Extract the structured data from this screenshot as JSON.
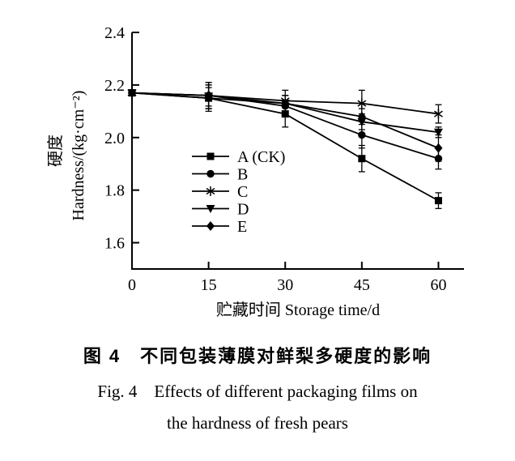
{
  "chart_data": {
    "type": "line",
    "title": "",
    "x": [
      0,
      15,
      30,
      45,
      60
    ],
    "xticks": [
      0,
      15,
      30,
      45,
      60
    ],
    "yticks": [
      1.6,
      1.8,
      2.0,
      2.2,
      2.4
    ],
    "xlim": [
      0,
      65
    ],
    "ylim": [
      1.5,
      2.4
    ],
    "xlabel": "贮藏时间 Storage time/d",
    "ylabel_zh": "硬度",
    "ylabel_en": "Hardness/(kg·cm⁻²)",
    "grid": false,
    "legend_position": "inside-lower-left",
    "line_color": "#000000",
    "series": [
      {
        "name": "A (CK)",
        "marker": "square",
        "values": [
          2.17,
          2.15,
          2.09,
          1.92,
          1.76
        ],
        "errors": [
          0,
          0.05,
          0.05,
          0.05,
          0.03
        ]
      },
      {
        "name": "B",
        "marker": "circle",
        "values": [
          2.17,
          2.16,
          2.12,
          2.01,
          1.92
        ],
        "errors": [
          0,
          0.05,
          0.04,
          0.05,
          0.04
        ]
      },
      {
        "name": "C",
        "marker": "asterisk",
        "values": [
          2.17,
          2.16,
          2.14,
          2.13,
          2.09
        ],
        "errors": [
          0,
          0.05,
          0.04,
          0.05,
          0.035
        ]
      },
      {
        "name": "D",
        "marker": "triangle-down",
        "values": [
          2.17,
          2.15,
          2.13,
          2.06,
          2.02
        ],
        "errors": [
          0,
          0.04,
          0.03,
          0.03,
          0.02
        ]
      },
      {
        "name": "E",
        "marker": "diamond",
        "values": [
          2.17,
          2.16,
          2.13,
          2.08,
          1.96
        ],
        "errors": [
          0,
          0.04,
          0.03,
          0.03,
          0.05
        ]
      }
    ]
  },
  "caption": {
    "zh": "图 4　不同包装薄膜对鲜梨多硬度的影响",
    "en_line1": "Fig. 4　Effects of different packaging films on",
    "en_line2": "the hardness of fresh pears"
  },
  "colors": {
    "foreground": "#000000",
    "background": "#ffffff"
  }
}
